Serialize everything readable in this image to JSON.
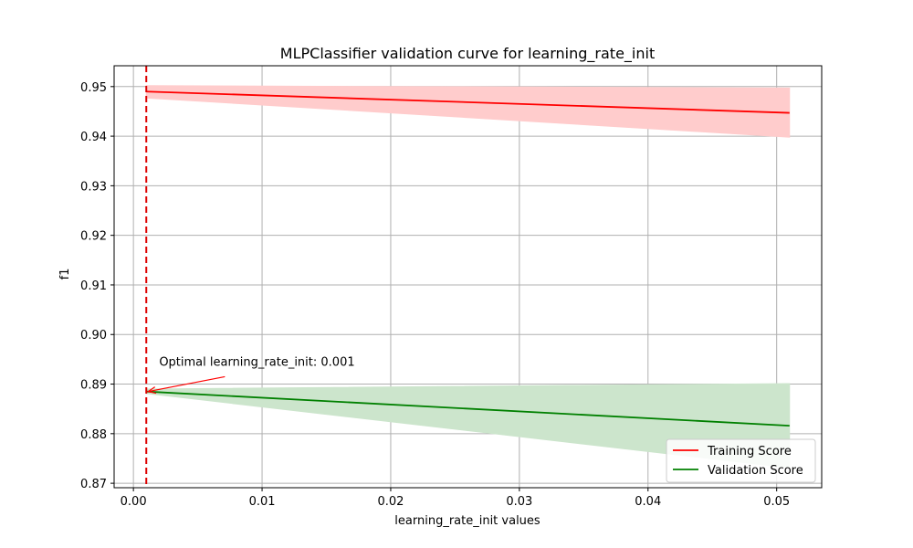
{
  "chart_data": {
    "type": "line",
    "title": "MLPClassifier validation curve for learning_rate_init",
    "xlabel": "learning_rate_init values",
    "ylabel": "f1",
    "xlim": [
      -0.0015,
      0.0535
    ],
    "ylim": [
      0.8691,
      0.9542
    ],
    "x_ticks": [
      0.0,
      0.01,
      0.02,
      0.03,
      0.04,
      0.05
    ],
    "x_tick_labels": [
      "0.00",
      "0.01",
      "0.02",
      "0.03",
      "0.04",
      "0.05"
    ],
    "y_ticks": [
      0.87,
      0.88,
      0.89,
      0.9,
      0.91,
      0.92,
      0.93,
      0.94,
      0.95
    ],
    "y_tick_labels": [
      "0.87",
      "0.88",
      "0.89",
      "0.90",
      "0.91",
      "0.92",
      "0.93",
      "0.94",
      "0.95"
    ],
    "grid": true,
    "legend_position": "lower-right",
    "x": [
      0.001,
      0.051
    ],
    "series": [
      {
        "name": "Training Score",
        "color": "#ff0000",
        "band_color": "#ffcccc",
        "values": [
          0.949,
          0.9447
        ],
        "band_lower": [
          0.9477,
          0.9398
        ],
        "band_upper": [
          0.9502,
          0.9497
        ]
      },
      {
        "name": "Validation Score",
        "color": "#008000",
        "band_color": "#cce5cc",
        "values": [
          0.8885,
          0.8816
        ],
        "band_lower": [
          0.8881,
          0.8731
        ],
        "band_upper": [
          0.889,
          0.8901
        ]
      }
    ],
    "optimal": {
      "x": 0.001,
      "y": 0.8885,
      "label": "Optimal learning_rate_init: 0.001",
      "label_x": 0.002,
      "label_y": 0.8937,
      "line_color": "#dd0000"
    }
  }
}
